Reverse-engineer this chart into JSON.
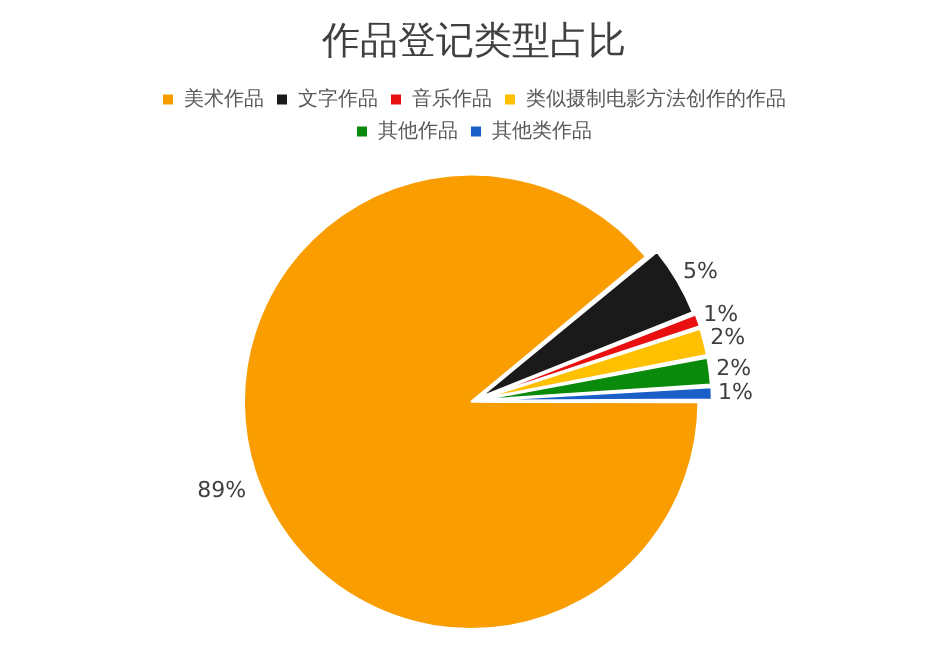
{
  "chart_data": {
    "type": "pie",
    "title": "作品登记类型占比",
    "categories": [
      "美术作品",
      "文字作品",
      "音乐作品",
      "类似摄制电影方法创作的作品",
      "其他作品",
      "其他类作品"
    ],
    "values": [
      89,
      5,
      1,
      2,
      2,
      1
    ],
    "value_labels": [
      "89%",
      "5%",
      "1%",
      "2%",
      "2%",
      "1%"
    ],
    "colors": [
      "#f99d00",
      "#1a1a1a",
      "#e81010",
      "#ffc000",
      "#0a8a0a",
      "#1a5fc8"
    ],
    "legend": "top"
  }
}
